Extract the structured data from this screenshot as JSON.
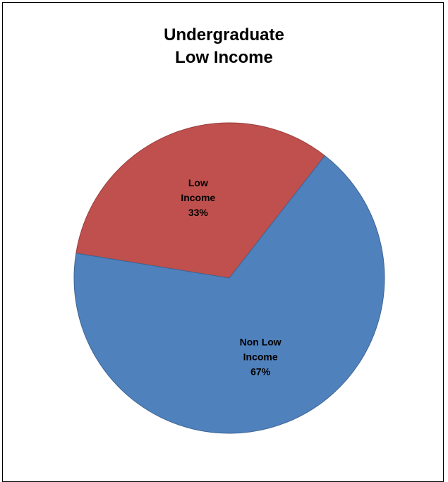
{
  "chart_data": {
    "type": "pie",
    "title_lines": [
      "Undergraduate",
      "Low Income"
    ],
    "start_angle_deg": 52,
    "slices": [
      {
        "label_lines": [
          "Low",
          "Income",
          "33%"
        ],
        "value": 33,
        "color": "#c0504d"
      },
      {
        "label_lines": [
          "Non Low",
          "Income",
          "67%"
        ],
        "value": 67,
        "color": "#4f81bd"
      }
    ],
    "legend": "none"
  }
}
